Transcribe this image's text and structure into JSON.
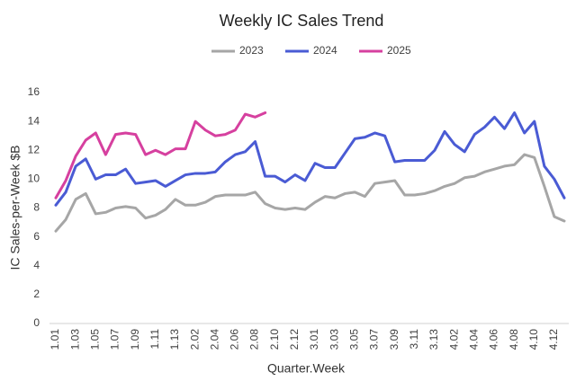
{
  "chart_data": {
    "type": "line",
    "title": "Weekly IC Sales Trend",
    "x_label": "Quarter.Week",
    "y_label": "IC Sales-per-Week $B",
    "categories": [
      "1.01",
      null,
      "1.03",
      null,
      "1.05",
      null,
      "1.07",
      null,
      "1.09",
      null,
      "1.11",
      null,
      "1.13",
      null,
      "2.02",
      null,
      "2.04",
      null,
      "2.06",
      null,
      "2.08",
      null,
      "2.10",
      null,
      "2.12",
      null,
      "3.01",
      null,
      "3.03",
      null,
      "3.05",
      null,
      "3.07",
      null,
      "3.09",
      null,
      "3.11",
      null,
      "3.13",
      null,
      "4.02",
      null,
      "4.04",
      null,
      "4.06",
      null,
      "4.08",
      null,
      "4.10",
      null,
      "4.12",
      null
    ],
    "series": [
      {
        "name": "2023",
        "color": "#a6a6a6",
        "values": [
          6.4,
          7.2,
          8.6,
          9.0,
          7.6,
          7.7,
          8.0,
          8.1,
          8.0,
          7.3,
          7.5,
          7.9,
          8.6,
          8.2,
          8.2,
          8.4,
          8.8,
          8.9,
          8.9,
          8.9,
          9.1,
          8.3,
          8.0,
          7.9,
          8.0,
          7.9,
          8.4,
          8.8,
          8.7,
          9.0,
          9.1,
          8.8,
          9.7,
          9.8,
          9.9,
          8.9,
          8.9,
          9.0,
          9.2,
          9.5,
          9.7,
          10.1,
          10.2,
          10.5,
          10.7,
          10.9,
          11.0,
          11.7,
          11.5,
          9.5,
          7.4,
          7.1
        ]
      },
      {
        "name": "2024",
        "color": "#4a5bd4",
        "values": [
          8.2,
          9.1,
          10.9,
          11.4,
          10.0,
          10.3,
          10.3,
          10.7,
          9.7,
          9.8,
          9.9,
          9.5,
          9.9,
          10.3,
          10.4,
          10.4,
          10.5,
          11.2,
          11.7,
          11.9,
          12.6,
          10.2,
          10.2,
          9.8,
          10.3,
          9.9,
          11.1,
          10.8,
          10.8,
          11.8,
          12.8,
          12.9,
          13.2,
          13.0,
          11.2,
          11.3,
          11.3,
          11.3,
          12.0,
          13.3,
          12.4,
          11.9,
          13.1,
          13.6,
          14.3,
          13.5,
          14.6,
          13.2,
          14.0,
          10.9,
          10.0,
          8.7
        ]
      },
      {
        "name": "2025",
        "color": "#d6409f",
        "values": [
          8.7,
          9.9,
          11.6,
          12.7,
          13.2,
          11.7,
          13.1,
          13.2,
          13.1,
          11.7,
          12.0,
          11.7,
          12.1,
          12.1,
          14.0,
          13.4,
          13.0,
          13.1,
          13.4,
          14.5,
          14.3,
          14.6,
          null,
          null,
          null,
          null,
          null,
          null,
          null,
          null,
          null,
          null,
          null,
          null,
          null,
          null,
          null,
          null,
          null,
          null,
          null,
          null,
          null,
          null,
          null,
          null,
          null,
          null,
          null,
          null,
          null,
          null
        ]
      }
    ],
    "ylim": [
      0,
      16
    ],
    "yticks": [
      0,
      2,
      4,
      6,
      8,
      10,
      12,
      14,
      16
    ],
    "grid": false,
    "legend": "top"
  }
}
